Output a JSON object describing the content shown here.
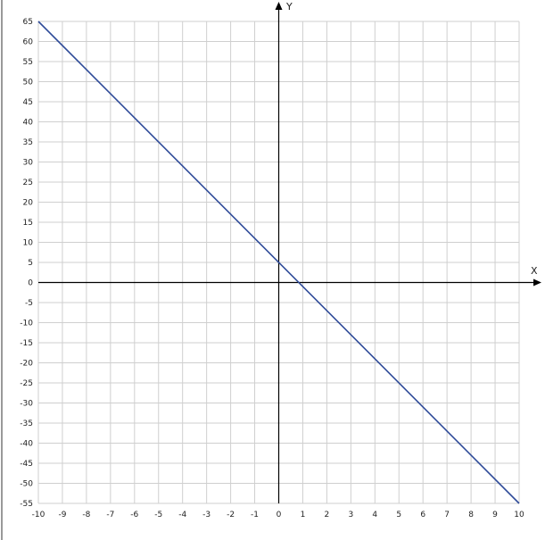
{
  "chart_data": {
    "type": "line",
    "xlabel": "X",
    "ylabel": "Y",
    "xlim": [
      -10,
      10
    ],
    "ylim": [
      -55,
      65
    ],
    "x_ticks": [
      -10,
      -9,
      -8,
      -7,
      -6,
      -5,
      -4,
      -3,
      -2,
      -1,
      0,
      1,
      2,
      3,
      4,
      5,
      6,
      7,
      8,
      9,
      10
    ],
    "y_ticks": [
      65,
      60,
      55,
      50,
      45,
      40,
      35,
      30,
      25,
      20,
      15,
      10,
      5,
      0,
      -5,
      -10,
      -15,
      -20,
      -25,
      -30,
      -35,
      -40,
      -45,
      -50,
      -55
    ],
    "grid": true,
    "series": [
      {
        "x": [
          -10,
          10
        ],
        "y": [
          65,
          -55
        ],
        "color": "#2f4b99"
      }
    ]
  }
}
